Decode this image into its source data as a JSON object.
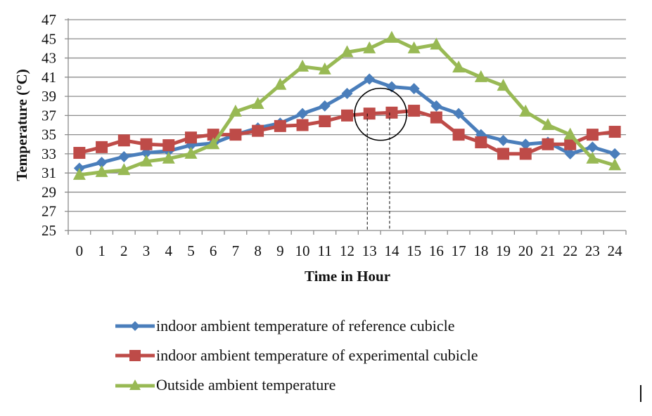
{
  "chart_data": {
    "type": "line",
    "title": "",
    "xlabel": "Time in Hour",
    "ylabel": "Temperature (°C)",
    "ylim": [
      25,
      47
    ],
    "yticks": [
      25,
      27,
      29,
      31,
      33,
      35,
      37,
      39,
      41,
      43,
      45,
      47
    ],
    "grid": true,
    "legend_position": "bottom",
    "categories": [
      "0",
      "1",
      "2",
      "3",
      "4",
      "5",
      "6",
      "7",
      "8",
      "9",
      "10",
      "11",
      "12",
      "13",
      "14",
      "15",
      "16",
      "17",
      "18",
      "19",
      "20",
      "21",
      "22",
      "23",
      "24"
    ],
    "series": [
      {
        "name": "indoor ambient temperature of reference cubicle",
        "color": "#4a7ebb",
        "marker": "diamond",
        "values": [
          31.5,
          32.1,
          32.7,
          33.1,
          33.3,
          33.9,
          34.1,
          35.0,
          35.7,
          36.2,
          37.2,
          38.0,
          39.3,
          40.8,
          40.0,
          39.8,
          38.0,
          37.2,
          35.0,
          34.4,
          34.0,
          34.2,
          33.0,
          33.7,
          33.0
        ]
      },
      {
        "name": "indoor ambient temperature of experimental cubicle",
        "color": "#be4b48",
        "marker": "square",
        "values": [
          33.1,
          33.7,
          34.4,
          34.0,
          33.9,
          34.7,
          35.0,
          35.0,
          35.4,
          35.9,
          36.0,
          36.4,
          37.0,
          37.2,
          37.3,
          37.5,
          36.8,
          35.0,
          34.2,
          33.0,
          33.0,
          34.0,
          34.0,
          35.0,
          35.3
        ]
      },
      {
        "name": "Outside ambient temperature",
        "color": "#98b954",
        "marker": "triangle",
        "values": [
          30.8,
          31.1,
          31.3,
          32.2,
          32.5,
          33.0,
          34.0,
          37.4,
          38.2,
          40.2,
          42.1,
          41.8,
          43.6,
          44.0,
          45.1,
          44.0,
          44.4,
          42.0,
          41.0,
          40.1,
          37.4,
          36.0,
          35.0,
          32.5,
          31.8
        ]
      }
    ],
    "annotations": [
      {
        "type": "circle",
        "around_hours": [
          13,
          14
        ],
        "around_value": 37.2
      },
      {
        "type": "dashed-vertical",
        "hour": 13,
        "from_value": 37.2
      },
      {
        "type": "dashed-vertical",
        "hour": 14,
        "from_value": 37.3
      }
    ]
  }
}
